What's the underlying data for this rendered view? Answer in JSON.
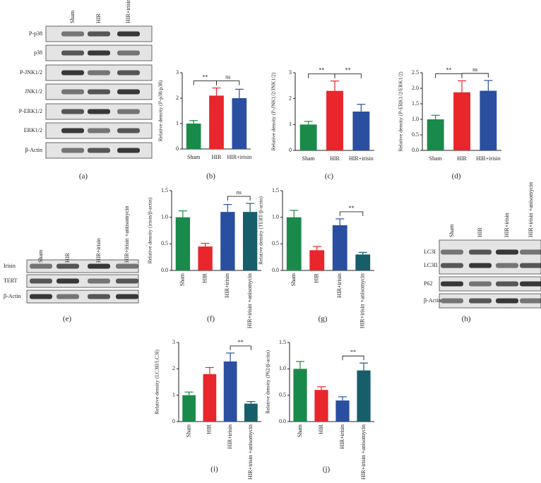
{
  "chart_data": [
    {
      "type": "bar",
      "label": "(b)",
      "ylabel": "Relative density (P-p38/p38)",
      "categories": [
        "Sham",
        "HIR",
        "HIR+irisin"
      ],
      "values": [
        1.0,
        2.1,
        2.0
      ],
      "errors": [
        0.12,
        0.3,
        0.35
      ],
      "colors": [
        "#1a8a4a",
        "#e8262b",
        "#2a4fa0"
      ],
      "ylim": [
        0,
        3
      ],
      "yticks": [
        0,
        1,
        2,
        3
      ],
      "significance": [
        {
          "from": 0,
          "to": 1,
          "text": "**"
        },
        {
          "from": 1,
          "to": 2,
          "text": "ns"
        }
      ]
    },
    {
      "type": "bar",
      "label": "(c)",
      "ylabel": "Relative density (P-JNK1/2/JNK1/2)",
      "categories": [
        "Sham",
        "HIR",
        "HIR+irisin"
      ],
      "values": [
        1.0,
        2.3,
        1.5
      ],
      "errors": [
        0.12,
        0.38,
        0.28
      ],
      "colors": [
        "#1a8a4a",
        "#e8262b",
        "#2a4fa0"
      ],
      "ylim": [
        0,
        3
      ],
      "yticks": [
        0,
        1,
        2,
        3
      ],
      "significance": [
        {
          "from": 0,
          "to": 1,
          "text": "**"
        },
        {
          "from": 1,
          "to": 2,
          "text": "**"
        }
      ]
    },
    {
      "type": "bar",
      "label": "(d)",
      "ylabel": "Relative density (P-ERK1/2/ERK1/2)",
      "categories": [
        "Sham",
        "HIR",
        "HIR+irisin"
      ],
      "values": [
        1.0,
        1.87,
        1.92
      ],
      "errors": [
        0.13,
        0.37,
        0.33
      ],
      "colors": [
        "#1a8a4a",
        "#e8262b",
        "#2a4fa0"
      ],
      "ylim": [
        0,
        2.5
      ],
      "yticks": [
        {
          "value": 0,
          "label": "0.0"
        },
        0.5,
        {
          "value": 1,
          "label": "1.0"
        },
        1.5,
        {
          "value": 2,
          "label": "2.0"
        },
        2.5
      ],
      "significance": [
        {
          "from": 0,
          "to": 1,
          "text": "**"
        },
        {
          "from": 1,
          "to": 2,
          "text": "ns"
        }
      ]
    },
    {
      "type": "bar",
      "label": "(f)",
      "ylabel": "Relative density (irisin/β-actin)",
      "categories": [
        "Sham",
        "HIR",
        "HIR+irisin",
        "HIR+irisin +anisomycin"
      ],
      "values": [
        1.0,
        0.45,
        1.1,
        1.1
      ],
      "errors": [
        0.12,
        0.06,
        0.14,
        0.16
      ],
      "colors": [
        "#1a8a4a",
        "#e8262b",
        "#2a4fa0",
        "#175e6b"
      ],
      "ylim": [
        0,
        1.5
      ],
      "yticks": [
        {
          "value": 0,
          "label": "0.0"
        },
        0.5,
        {
          "value": 1,
          "label": "1.0"
        },
        1.5
      ],
      "significance": [
        {
          "from": 2,
          "to": 3,
          "text": "ns"
        }
      ]
    },
    {
      "type": "bar",
      "label": "(g)",
      "ylabel": "Relative density (TERT/β-actin)",
      "categories": [
        "Sham",
        "HIR",
        "HIR+irisin",
        "HIR+irisin +anisomycin"
      ],
      "values": [
        1.0,
        0.38,
        0.85,
        0.3
      ],
      "errors": [
        0.13,
        0.07,
        0.12,
        0.04
      ],
      "colors": [
        "#1a8a4a",
        "#e8262b",
        "#2a4fa0",
        "#175e6b"
      ],
      "ylim": [
        0,
        1.5
      ],
      "yticks": [
        {
          "value": 0,
          "label": "0.0"
        },
        0.5,
        {
          "value": 1,
          "label": "1.0"
        },
        1.5
      ],
      "significance": [
        {
          "from": 2,
          "to": 3,
          "text": "**"
        }
      ]
    },
    {
      "type": "bar",
      "label": "(i)",
      "ylabel": "Relative density (LC3II/LC3I)",
      "categories": [
        "Sham",
        "HIR",
        "HIR+irisin",
        "HIR+irisin +anisomycin"
      ],
      "values": [
        1.0,
        1.8,
        2.28,
        0.68
      ],
      "errors": [
        0.12,
        0.25,
        0.32,
        0.08
      ],
      "colors": [
        "#1a8a4a",
        "#e8262b",
        "#2a4fa0",
        "#175e6b"
      ],
      "ylim": [
        0,
        3
      ],
      "yticks": [
        0,
        1,
        2,
        3
      ],
      "significance": [
        {
          "from": 2,
          "to": 3,
          "text": "**"
        }
      ]
    },
    {
      "type": "bar",
      "label": "(j)",
      "ylabel": "Relative density (P62/β-actin)",
      "categories": [
        "Sham",
        "HIR",
        "HIR+irisin",
        "HIR+irisin +anisomycin"
      ],
      "values": [
        1.0,
        0.6,
        0.4,
        0.97
      ],
      "errors": [
        0.14,
        0.06,
        0.07,
        0.14
      ],
      "colors": [
        "#1a8a4a",
        "#e8262b",
        "#2a4fa0",
        "#175e6b"
      ],
      "ylim": [
        0,
        1.5
      ],
      "yticks": [
        {
          "value": 0,
          "label": "0.0"
        },
        0.5,
        {
          "value": 1,
          "label": "1.0"
        },
        1.5
      ],
      "significance": [
        {
          "from": 2,
          "to": 3,
          "text": "**"
        }
      ]
    }
  ],
  "blots": [
    {
      "label": "(a)",
      "lanes": [
        "Sham",
        "HIR",
        "HIR+irisin"
      ],
      "rows": [
        "P-p38",
        "p38",
        "P-JNK1/2",
        "JNK1/2",
        "P-ERK1/2",
        "ERK1/2",
        "β-Actin"
      ]
    },
    {
      "label": "(e)",
      "lanes": [
        "Sham",
        "HIR",
        "HIR+irisin",
        "HIR+irisin +antisomycin"
      ],
      "rows": [
        "Irisin",
        "TERT",
        "β-Actin"
      ]
    },
    {
      "label": "(h)",
      "lanes": [
        "Sham",
        "HIR",
        "HIR+irisin",
        "HIR+irisin +anisomycin"
      ],
      "rows": [
        "LC3I",
        "LC3II",
        "P62",
        "β-Actin"
      ]
    }
  ]
}
